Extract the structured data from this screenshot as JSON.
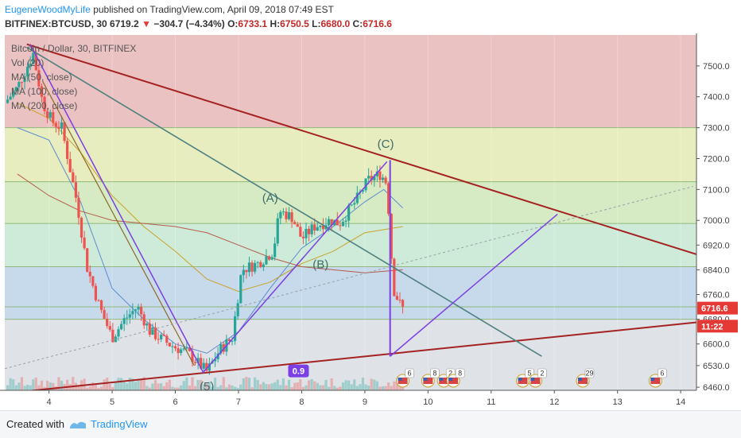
{
  "header": {
    "user": "EugeneWoodMyLife",
    "published": " published on TradingView.com, April 09, 2018 07:49 EST",
    "symbol": "BITFINEX:BTCUSD, 30",
    "last": "6719.2",
    "change": "−304.7 (−4.34%)",
    "o_label": "O:",
    "o": "6733.1",
    "h_label": "H:",
    "h": "6750.5",
    "l_label": "L:",
    "l": "6680.0",
    "c_label": "C:",
    "c": "6716.6"
  },
  "legend": {
    "title": "Bitcoin / Dollar, 30, BITFINEX",
    "items": [
      "Vol (20)",
      "MA (50, close)",
      "MA (100, close)",
      "MA (200, close)"
    ]
  },
  "chart_data": {
    "type": "candlestick",
    "x_ticks": [
      {
        "label": "4",
        "x": 4
      },
      {
        "label": "5",
        "x": 5
      },
      {
        "label": "6",
        "x": 6
      },
      {
        "label": "7",
        "x": 7
      },
      {
        "label": "8",
        "x": 8
      },
      {
        "label": "9",
        "x": 9
      },
      {
        "label": "10",
        "x": 10
      },
      {
        "label": "11",
        "x": 11
      },
      {
        "label": "12",
        "x": 12
      },
      {
        "label": "13",
        "x": 13
      },
      {
        "label": "14",
        "x": 14
      }
    ],
    "xlim": [
      3.3,
      14.25
    ],
    "ylim": [
      6450,
      7600
    ],
    "y_ticks": [
      6460,
      6530,
      6600,
      6680,
      6760,
      6840,
      6920,
      7000,
      7100,
      7200,
      7300,
      7400,
      7500
    ],
    "y_tick_labels": [
      "6460.0",
      "6530.0",
      "6600.0",
      "6680.0",
      "6760.0",
      "6840.0",
      "6920.0",
      "7000.0",
      "7100.0",
      "7200.0",
      "7300.0",
      "7400.0",
      "7500.0"
    ],
    "fib_bands": [
      {
        "from": 7300,
        "to": 7600,
        "color": "#e8b7b7"
      },
      {
        "from": 7125,
        "to": 7300,
        "color": "#e3eab4"
      },
      {
        "from": 6990,
        "to": 7125,
        "color": "#cfe8b9"
      },
      {
        "from": 6850,
        "to": 6990,
        "color": "#c5e8d2"
      },
      {
        "from": 6680,
        "to": 6850,
        "color": "#bcd3e7"
      },
      {
        "from": 6450,
        "to": 6680,
        "color": "#d9dde3"
      }
    ],
    "fib_lines": [
      7300,
      7125,
      6990,
      6850,
      6720,
      6680
    ],
    "price_path": [
      [
        3.3,
        7380
      ],
      [
        3.5,
        7430
      ],
      [
        3.75,
        7540
      ],
      [
        3.9,
        7380
      ],
      [
        4.05,
        7320
      ],
      [
        4.2,
        7300
      ],
      [
        4.3,
        7200
      ],
      [
        4.45,
        7050
      ],
      [
        4.6,
        6850
      ],
      [
        4.8,
        6720
      ],
      [
        5.0,
        6620
      ],
      [
        5.2,
        6680
      ],
      [
        5.4,
        6720
      ],
      [
        5.6,
        6640
      ],
      [
        5.9,
        6600
      ],
      [
        6.2,
        6570
      ],
      [
        6.5,
        6510
      ],
      [
        6.7,
        6580
      ],
      [
        6.9,
        6620
      ],
      [
        7.05,
        6840
      ],
      [
        7.3,
        6860
      ],
      [
        7.55,
        6900
      ],
      [
        7.65,
        7030
      ],
      [
        7.85,
        7010
      ],
      [
        8.0,
        6940
      ],
      [
        8.2,
        6980
      ],
      [
        8.45,
        7000
      ],
      [
        8.6,
        6990
      ],
      [
        8.85,
        7060
      ],
      [
        9.05,
        7130
      ],
      [
        9.25,
        7150
      ],
      [
        9.35,
        7120
      ],
      [
        9.45,
        6780
      ],
      [
        9.55,
        6730
      ],
      [
        9.6,
        6716
      ]
    ],
    "ma50": [
      [
        3.5,
        7300
      ],
      [
        4.0,
        7260
      ],
      [
        4.5,
        7060
      ],
      [
        5.0,
        6780
      ],
      [
        5.5,
        6680
      ],
      [
        6.0,
        6600
      ],
      [
        6.5,
        6570
      ],
      [
        7.0,
        6640
      ],
      [
        7.5,
        6780
      ],
      [
        8.0,
        6910
      ],
      [
        8.5,
        6980
      ],
      [
        9.0,
        7060
      ],
      [
        9.3,
        7100
      ],
      [
        9.6,
        7040
      ]
    ],
    "ma100": [
      [
        3.5,
        7380
      ],
      [
        4.0,
        7330
      ],
      [
        4.5,
        7220
      ],
      [
        5.0,
        7080
      ],
      [
        5.5,
        6980
      ],
      [
        6.0,
        6900
      ],
      [
        6.5,
        6810
      ],
      [
        7.0,
        6770
      ],
      [
        7.5,
        6800
      ],
      [
        8.0,
        6860
      ],
      [
        8.5,
        6900
      ],
      [
        9.0,
        6960
      ],
      [
        9.6,
        6980
      ]
    ],
    "ma200": [
      [
        3.5,
        7150
      ],
      [
        4.0,
        7080
      ],
      [
        4.5,
        7030
      ],
      [
        5.0,
        7000
      ],
      [
        5.5,
        6990
      ],
      [
        6.0,
        6980
      ],
      [
        6.5,
        6960
      ],
      [
        7.0,
        6920
      ],
      [
        7.5,
        6880
      ],
      [
        8.0,
        6850
      ],
      [
        8.5,
        6840
      ],
      [
        9.0,
        6830
      ],
      [
        9.6,
        6840
      ]
    ],
    "trendlines": [
      {
        "name": "upper-resistance",
        "points": [
          [
            3.65,
            7570
          ],
          [
            14.25,
            6890
          ]
        ],
        "color": "#a52222",
        "width": 2
      },
      {
        "name": "lower-support",
        "points": [
          [
            3.3,
            6440
          ],
          [
            14.25,
            6670
          ]
        ],
        "color": "#a52222",
        "width": 2
      },
      {
        "name": "descending-channel",
        "points": [
          [
            3.65,
            7560
          ],
          [
            11.8,
            6560
          ]
        ],
        "color": "#4f8080",
        "width": 1.6
      },
      {
        "name": "abc-wave-up",
        "points": [
          [
            6.45,
            6510
          ],
          [
            9.35,
            7190
          ]
        ],
        "color": "#7b3fe4",
        "width": 1.5
      },
      {
        "name": "left-drop",
        "points": [
          [
            3.7,
            7570
          ],
          [
            6.45,
            6505
          ]
        ],
        "color": "#7b3fe4",
        "width": 1.5
      },
      {
        "name": "left-drop-2",
        "points": [
          [
            3.9,
            7450
          ],
          [
            6.3,
            6530
          ]
        ],
        "color": "#8c6a2a",
        "width": 1.2
      },
      {
        "name": "c-drop",
        "points": [
          [
            9.4,
            7195
          ],
          [
            9.4,
            6560
          ]
        ],
        "color": "#7b3fe4",
        "width": 2
      },
      {
        "name": "target-rise",
        "points": [
          [
            9.4,
            6560
          ],
          [
            12.05,
            7020
          ]
        ],
        "color": "#7b3fe4",
        "width": 1.5
      },
      {
        "name": "dotted-trend",
        "points": [
          [
            3.3,
            6520
          ],
          [
            14.2,
            7110
          ]
        ],
        "color": "#9aa0a6",
        "width": 1,
        "dash": "3,3"
      }
    ],
    "wave_labels": [
      {
        "label": "(A)",
        "x": 7.5,
        "y": 7060
      },
      {
        "label": "(B)",
        "x": 8.3,
        "y": 6845
      },
      {
        "label": "(C)",
        "x": 9.33,
        "y": 7235
      },
      {
        "label": "(5)",
        "x": 6.5,
        "y": 6450
      }
    ],
    "ratio_label": {
      "label": "0.9",
      "x": 7.95,
      "y": 6510
    },
    "price_tags": [
      {
        "label": "6716.6",
        "y": 6716,
        "color": "#e53935"
      },
      {
        "label": "11:22",
        "y": 6673,
        "color": "#e53935"
      }
    ],
    "event_markers": [
      {
        "x": 9.6,
        "count": "6"
      },
      {
        "x": 10.0,
        "count": "8"
      },
      {
        "x": 10.25,
        "count": "2"
      },
      {
        "x": 10.4,
        "count": "8"
      },
      {
        "x": 11.5,
        "count": "5"
      },
      {
        "x": 11.7,
        "count": "2"
      },
      {
        "x": 12.45,
        "count": "29"
      },
      {
        "x": 13.6,
        "count": "6"
      }
    ]
  },
  "footer": {
    "created_with": "Created with",
    "brand": "TradingView"
  },
  "colors": {
    "resistance": "#a52222",
    "wave": "#7b3fe4",
    "candle_up": "#26a69a",
    "candle_down": "#ef5350"
  }
}
